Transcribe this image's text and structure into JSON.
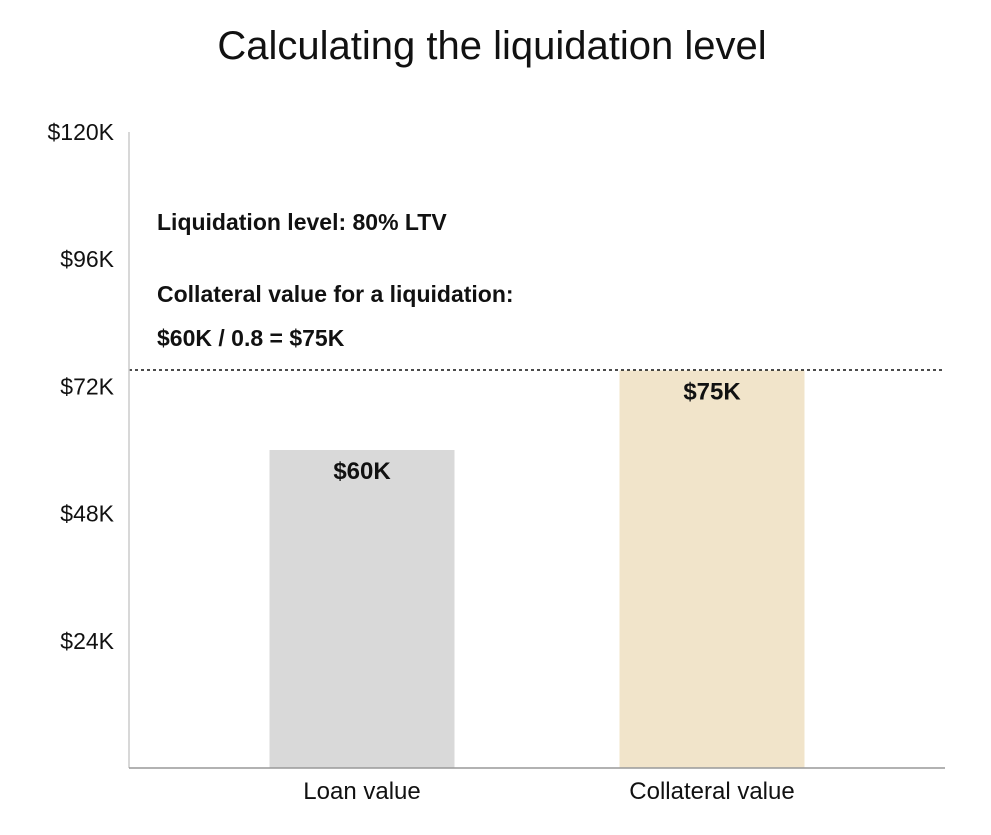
{
  "chart_data": {
    "type": "bar",
    "title": "Calculating the liquidation level",
    "xlabel": "",
    "ylabel": "",
    "categories": [
      "Loan value",
      "Collateral value"
    ],
    "values": [
      60000,
      75000
    ],
    "value_labels": [
      "$60K",
      "$75K"
    ],
    "ylim": [
      0,
      120000
    ],
    "y_ticks": [
      24000,
      48000,
      72000,
      96000,
      120000
    ],
    "y_tick_labels": [
      "$24K",
      "$48K",
      "$72K",
      "$96K",
      "$120K"
    ],
    "grid": false,
    "reference_line": {
      "value": 75000,
      "style": "dotted"
    },
    "annotations": [
      "Liquidation level: 80% LTV",
      "Collateral value for a liquidation:",
      "$60K / 0.8 = $75K"
    ],
    "colors": {
      "bars": [
        "#d9d9d9",
        "#f1e4ca"
      ],
      "axis": "#999999",
      "reference_line": "#111111",
      "text": "#111111"
    }
  }
}
